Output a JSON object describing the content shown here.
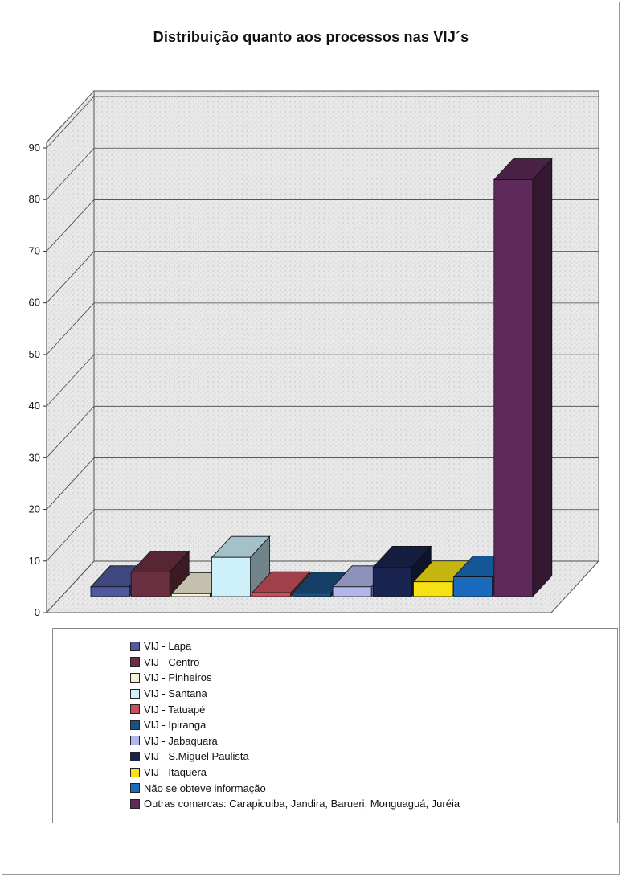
{
  "chart_data": {
    "type": "bar",
    "title": "Distribuição quanto aos processos nas VIJ´s",
    "xlabel": "",
    "ylabel": "",
    "ylim": [
      0,
      90
    ],
    "yticks": [
      "0",
      "10",
      "20",
      "30",
      "40",
      "50",
      "60",
      "70",
      "80",
      "90"
    ],
    "grid": true,
    "three_d": true,
    "legend_position": "bottom",
    "series": [
      {
        "name": "VIJ - Lapa",
        "value": 2,
        "color": "#4f5a9e"
      },
      {
        "name": "VIJ - Centro",
        "value": 5,
        "color": "#6b2f42"
      },
      {
        "name": "VIJ - Pinheiros",
        "value": 0.6,
        "color": "#f4f1d8"
      },
      {
        "name": "VIJ - Santana",
        "value": 8,
        "color": "#cdf0fb"
      },
      {
        "name": "VIJ - Tatuapé",
        "value": 0.8,
        "color": "#c8505c"
      },
      {
        "name": "VIJ - Ipiranga",
        "value": 0.7,
        "color": "#1c4f82"
      },
      {
        "name": "VIJ - Jabaquara",
        "value": 2,
        "color": "#b2b6ea"
      },
      {
        "name": "VIJ - S.Miguel Paulista",
        "value": 6,
        "color": "#1a2450"
      },
      {
        "name": "VIJ - Itaquera",
        "value": 3,
        "color": "#f6e214"
      },
      {
        "name": "Não se obteve informação",
        "value": 4,
        "color": "#1a6bbd"
      },
      {
        "name": "Outras comarcas: Carapicuiba, Jandira, Barueri, Monguaguá, Juréia",
        "value": 85,
        "color": "#5e2a59"
      }
    ]
  }
}
